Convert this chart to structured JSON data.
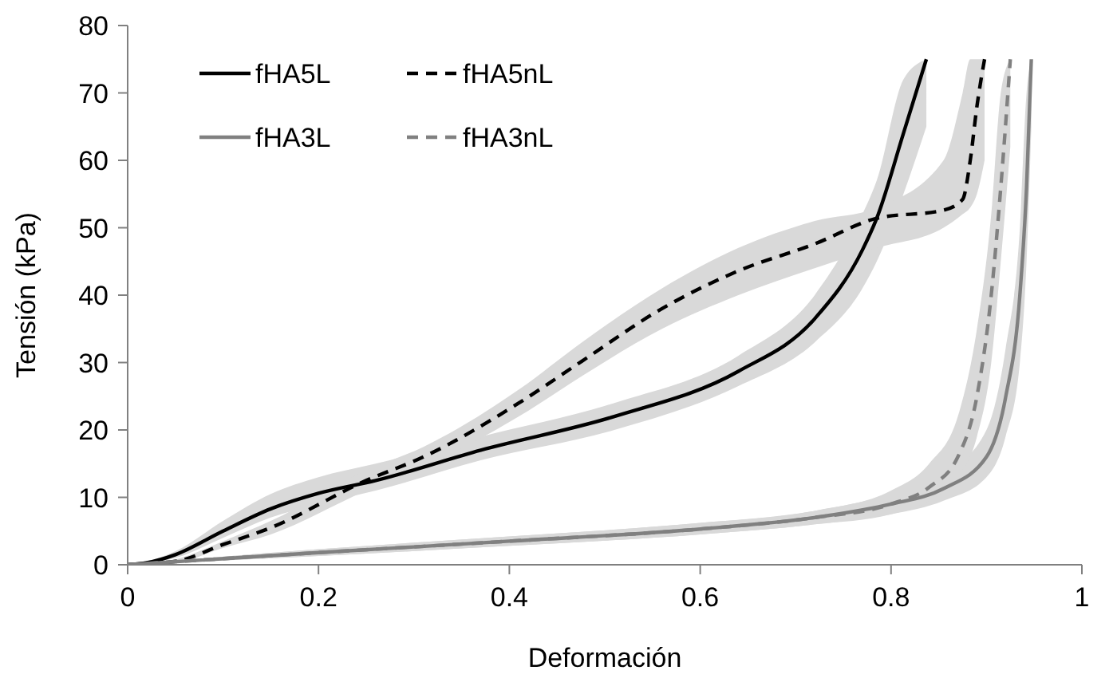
{
  "chart_data": {
    "type": "line",
    "xlabel": "Deformación",
    "ylabel": "Tensión (kPa)",
    "xlim": [
      0,
      1
    ],
    "xticks": [
      0,
      0.2,
      0.4,
      0.6,
      0.8,
      1
    ],
    "ylim": [
      0,
      80
    ],
    "yticks": [
      0,
      10,
      20,
      30,
      40,
      50,
      60,
      70,
      80
    ],
    "grid": false,
    "legend": "top left",
    "series": [
      {
        "name": "fHA5L",
        "color": "#000000",
        "line_style": "solid",
        "x": [
          0,
          0.02,
          0.05,
          0.1,
          0.15,
          0.2,
          0.26,
          0.37,
          0.51,
          0.64,
          0.72,
          0.77,
          0.785,
          0.813,
          0.837
        ],
        "values": [
          0,
          0.3,
          1.5,
          5,
          8.3,
          10.6,
          12.5,
          17,
          22,
          28.7,
          36.5,
          46.7,
          51.4,
          64,
          75
        ],
        "lower": [
          0,
          0.2,
          1,
          4,
          7,
          9,
          11,
          15.5,
          20,
          26.5,
          33,
          41,
          45,
          55,
          65
        ],
        "upper": [
          0,
          0.5,
          2,
          6.5,
          10.5,
          13,
          15,
          19,
          24,
          31,
          40,
          52,
          57,
          72,
          75
        ]
      },
      {
        "name": "fHA5nL",
        "color": "#000000",
        "line_style": "dashed",
        "x": [
          0,
          0.05,
          0.1,
          0.15,
          0.25,
          0.31,
          0.41,
          0.476,
          0.56,
          0.64,
          0.72,
          0.785,
          0.855,
          0.875,
          0.883,
          0.89,
          0.898
        ],
        "values": [
          0,
          0.5,
          3,
          5.5,
          12.5,
          16,
          24,
          30.2,
          38,
          43.6,
          47.6,
          51.4,
          52.6,
          54.2,
          60,
          68,
          75
        ],
        "lower": [
          0,
          0.3,
          2.5,
          4.5,
          11,
          14.5,
          22,
          28,
          35,
          40,
          44,
          47,
          50,
          52,
          53,
          55,
          60
        ],
        "upper": [
          0,
          0.8,
          3.5,
          6.5,
          14,
          17.5,
          26,
          33,
          41,
          47,
          51,
          53,
          60,
          70,
          75,
          75,
          75
        ]
      },
      {
        "name": "fHA3L",
        "color": "#808080",
        "line_style": "solid",
        "x": [
          0,
          0.2,
          0.4,
          0.6,
          0.72,
          0.8,
          0.855,
          0.9,
          0.92,
          0.935,
          0.942,
          0.947
        ],
        "values": [
          0,
          1.8,
          3.5,
          5.3,
          7,
          9,
          11.3,
          16,
          24.8,
          40,
          56,
          75
        ],
        "lower": [
          0,
          1.3,
          2.8,
          4.5,
          6,
          7.5,
          9.5,
          13,
          19,
          30,
          45,
          65
        ],
        "upper": [
          0,
          2.3,
          4.2,
          6.2,
          8,
          10.5,
          13.5,
          20,
          32,
          50,
          70,
          75
        ]
      },
      {
        "name": "fHA3nL",
        "color": "#808080",
        "line_style": "dashed",
        "x": [
          0,
          0.2,
          0.4,
          0.6,
          0.72,
          0.8,
          0.84,
          0.87,
          0.89,
          0.905,
          0.915,
          0.925
        ],
        "values": [
          0,
          1.8,
          3.5,
          5.3,
          7,
          9,
          11.5,
          16,
          25,
          40,
          56,
          75
        ],
        "lower": [
          0,
          1.3,
          2.8,
          4.5,
          6,
          7.5,
          9.5,
          13,
          19,
          30,
          45,
          62
        ],
        "upper": [
          0,
          2.3,
          4.2,
          6.2,
          8,
          11,
          15,
          22,
          35,
          52,
          70,
          75
        ]
      }
    ]
  }
}
